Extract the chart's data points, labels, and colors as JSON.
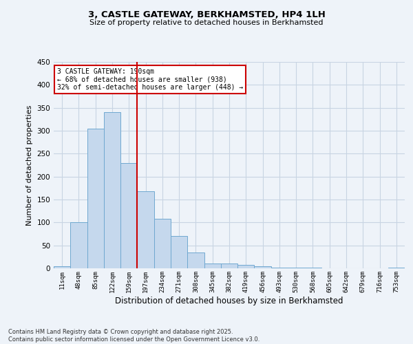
{
  "title1": "3, CASTLE GATEWAY, BERKHAMSTED, HP4 1LH",
  "title2": "Size of property relative to detached houses in Berkhamsted",
  "xlabel": "Distribution of detached houses by size in Berkhamsted",
  "ylabel": "Number of detached properties",
  "categories": [
    "11sqm",
    "48sqm",
    "85sqm",
    "122sqm",
    "159sqm",
    "197sqm",
    "234sqm",
    "271sqm",
    "308sqm",
    "345sqm",
    "382sqm",
    "419sqm",
    "456sqm",
    "493sqm",
    "530sqm",
    "568sqm",
    "605sqm",
    "642sqm",
    "679sqm",
    "716sqm",
    "753sqm"
  ],
  "values": [
    4,
    100,
    305,
    340,
    230,
    168,
    108,
    70,
    35,
    11,
    11,
    7,
    5,
    2,
    1,
    1,
    0,
    0,
    0,
    0,
    2
  ],
  "bar_color": "#c5d8ed",
  "bar_edge_color": "#6fa8d0",
  "grid_color": "#c8d4e3",
  "background_color": "#eef3f9",
  "annotation_box_color": "#ffffff",
  "annotation_border_color": "#cc0000",
  "annotation_line1": "3 CASTLE GATEWAY: 190sqm",
  "annotation_line2": "← 68% of detached houses are smaller (938)",
  "annotation_line3": "32% of semi-detached houses are larger (448) →",
  "vline_x": 4.5,
  "vline_color": "#cc0000",
  "footnote": "Contains HM Land Registry data © Crown copyright and database right 2025.\nContains public sector information licensed under the Open Government Licence v3.0.",
  "ylim": [
    0,
    450
  ],
  "yticks": [
    0,
    50,
    100,
    150,
    200,
    250,
    300,
    350,
    400,
    450
  ]
}
